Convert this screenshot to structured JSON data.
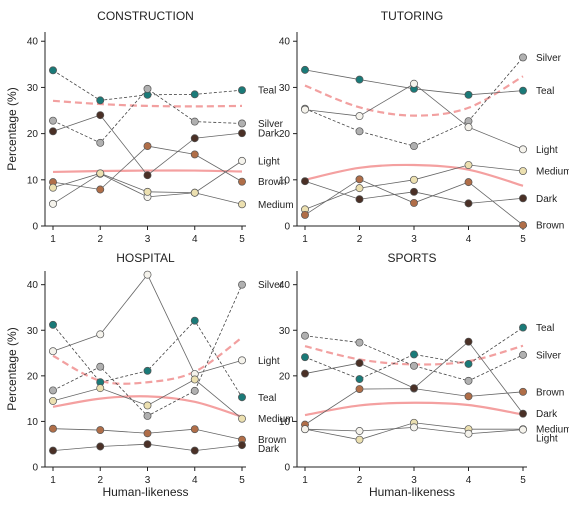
{
  "chart_data": [
    {
      "type": "line",
      "title": "CONSTRUCTION",
      "xlabel": "",
      "ylabel": "Percentage (%)",
      "x": [
        1,
        2,
        3,
        4,
        5
      ],
      "ylim": [
        0,
        42
      ],
      "yticks": [
        0,
        10,
        20,
        30,
        40
      ],
      "series": [
        {
          "name": "Teal",
          "color": "#1a7a78",
          "style": "dashed",
          "values": [
            33.7,
            27.2,
            28.4,
            28.5,
            29.4
          ]
        },
        {
          "name": "Silver",
          "color": "#b0b0b0",
          "style": "dashed",
          "values": [
            22.8,
            18.0,
            29.7,
            22.6,
            22.2
          ]
        },
        {
          "name": "Dark",
          "color": "#4a3026",
          "style": "solid",
          "values": [
            20.5,
            24.0,
            11.0,
            19.0,
            20.1
          ]
        },
        {
          "name": "Light",
          "color": "#f5f3ec",
          "style": "solid",
          "values": [
            4.8,
            11.3,
            6.3,
            7.2,
            14.1
          ]
        },
        {
          "name": "Brown",
          "color": "#b06e48",
          "style": "solid",
          "values": [
            9.5,
            7.9,
            17.3,
            15.5,
            9.6
          ]
        },
        {
          "name": "Medium",
          "color": "#ece0b0",
          "style": "solid",
          "values": [
            8.3,
            11.4,
            7.4,
            7.2,
            4.7
          ]
        }
      ],
      "trends": [
        {
          "color": "#f2a0a0",
          "style": "dashed",
          "values": [
            27.1,
            26.4,
            26.0,
            25.9,
            26.0
          ]
        },
        {
          "color": "#f4a0a0",
          "style": "solid",
          "values": [
            11.7,
            11.9,
            12.0,
            12.0,
            11.8
          ]
        }
      ]
    },
    {
      "type": "line",
      "title": "TUTORING",
      "xlabel": "",
      "ylabel": "",
      "x": [
        1,
        2,
        3,
        4,
        5
      ],
      "ylim": [
        0,
        42
      ],
      "yticks": [
        0,
        10,
        20,
        30,
        40
      ],
      "series": [
        {
          "name": "Silver",
          "color": "#b0b0b0",
          "style": "dashed",
          "values": [
            25.4,
            20.5,
            17.3,
            22.7,
            36.5
          ]
        },
        {
          "name": "Teal",
          "color": "#1a7a78",
          "style": "solid",
          "values": [
            33.8,
            31.7,
            29.7,
            28.4,
            29.3
          ]
        },
        {
          "name": "Light",
          "color": "#f5f3ec",
          "style": "solid",
          "values": [
            25.2,
            23.8,
            30.8,
            21.4,
            16.6
          ]
        },
        {
          "name": "Medium",
          "color": "#ece0b0",
          "style": "solid",
          "values": [
            3.6,
            8.2,
            10.0,
            13.2,
            11.9
          ]
        },
        {
          "name": "Dark",
          "color": "#4a3026",
          "style": "solid",
          "values": [
            9.7,
            5.8,
            7.4,
            4.9,
            6.0
          ]
        },
        {
          "name": "Brown",
          "color": "#b06e48",
          "style": "solid",
          "values": [
            2.4,
            10.1,
            5.0,
            9.5,
            0.2
          ]
        }
      ],
      "trends": [
        {
          "color": "#f2a0a0",
          "style": "dashed",
          "values": [
            30.4,
            25.7,
            23.9,
            25.6,
            32.4
          ]
        },
        {
          "color": "#f4a0a0",
          "style": "solid",
          "values": [
            10.0,
            12.6,
            13.2,
            12.2,
            8.7
          ]
        }
      ]
    },
    {
      "type": "line",
      "title": "HOSPITAL",
      "xlabel": "Human-likeness",
      "ylabel": "Percentage (%)",
      "x": [
        1,
        2,
        3,
        4,
        5
      ],
      "ylim": [
        0,
        43
      ],
      "yticks": [
        0,
        10,
        20,
        30,
        40
      ],
      "series": [
        {
          "name": "Silver",
          "color": "#b0b0b0",
          "style": "dashed",
          "values": [
            16.8,
            22.0,
            11.2,
            16.7,
            40.0
          ]
        },
        {
          "name": "Teal",
          "color": "#1a7a78",
          "style": "dashed",
          "values": [
            31.2,
            18.6,
            21.1,
            32.1,
            15.3
          ]
        },
        {
          "name": "Light",
          "color": "#f5f3ec",
          "style": "solid",
          "values": [
            25.4,
            29.1,
            42.2,
            20.4,
            23.4
          ]
        },
        {
          "name": "Medium",
          "color": "#ece0b0",
          "style": "solid",
          "values": [
            14.5,
            17.3,
            13.5,
            19.2,
            10.6
          ]
        },
        {
          "name": "Brown",
          "color": "#b06e48",
          "style": "solid",
          "values": [
            8.4,
            8.1,
            7.4,
            8.3,
            6.0
          ]
        },
        {
          "name": "Dark",
          "color": "#4a3026",
          "style": "solid",
          "values": [
            3.6,
            4.5,
            5.0,
            3.6,
            4.8
          ]
        }
      ],
      "trends": [
        {
          "color": "#f2a0a0",
          "style": "dashed",
          "values": [
            24.4,
            18.9,
            18.6,
            20.9,
            28.4
          ]
        },
        {
          "color": "#f4a0a0",
          "style": "solid",
          "values": [
            13.2,
            15.0,
            15.5,
            14.3,
            11.0
          ]
        }
      ]
    },
    {
      "type": "line",
      "title": "SPORTS",
      "xlabel": "Human-likeness",
      "ylabel": "",
      "x": [
        1,
        2,
        3,
        4,
        5
      ],
      "ylim": [
        0,
        43
      ],
      "yticks": [
        0,
        10,
        20,
        30,
        40
      ],
      "series": [
        {
          "name": "Teal",
          "color": "#1a7a78",
          "style": "dashed",
          "values": [
            24.1,
            19.3,
            24.7,
            22.6,
            30.6
          ]
        },
        {
          "name": "Silver",
          "color": "#b0b0b0",
          "style": "dashed",
          "values": [
            28.8,
            27.3,
            22.2,
            18.9,
            24.6
          ]
        },
        {
          "name": "Brown",
          "color": "#b06e48",
          "style": "solid",
          "values": [
            9.3,
            17.1,
            17.2,
            15.5,
            16.5
          ]
        },
        {
          "name": "Dark",
          "color": "#4a3026",
          "style": "solid",
          "values": [
            20.5,
            22.8,
            17.3,
            27.5,
            11.7
          ]
        },
        {
          "name": "Medium",
          "color": "#ece0b0",
          "style": "solid",
          "values": [
            8.3,
            6.0,
            9.7,
            8.3,
            8.3
          ]
        },
        {
          "name": "Light",
          "color": "#f5f3ec",
          "style": "solid",
          "values": [
            8.3,
            7.9,
            8.7,
            7.3,
            8.2
          ]
        }
      ],
      "trends": [
        {
          "color": "#f2a0a0",
          "style": "dashed",
          "values": [
            26.5,
            23.6,
            22.5,
            23.2,
            26.6
          ]
        },
        {
          "color": "#f4a0a0",
          "style": "solid",
          "values": [
            11.4,
            13.5,
            14.1,
            13.6,
            11.5
          ]
        }
      ]
    }
  ]
}
